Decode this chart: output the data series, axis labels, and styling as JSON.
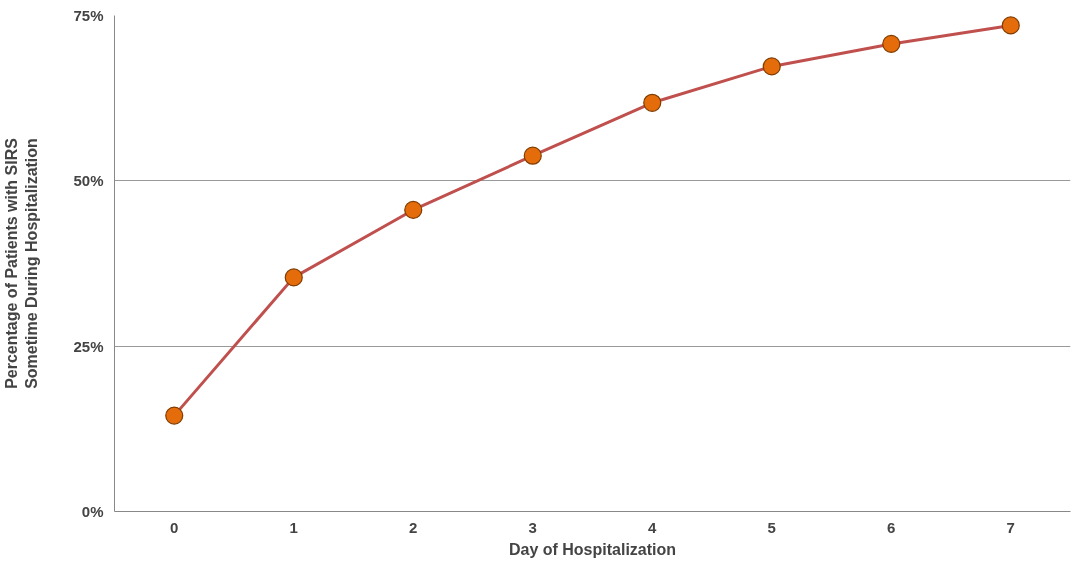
{
  "chart_data": {
    "type": "line",
    "xlabel": "Day of Hospitalization",
    "ylabel": "Percentage of Patients with SIRS\nSometime During Hospitalization",
    "categories": [
      "0",
      "1",
      "2",
      "3",
      "4",
      "5",
      "6",
      "7"
    ],
    "series": [
      {
        "color": "#c0504d",
        "values": [
          14.5,
          35.4,
          45.6,
          53.8,
          61.8,
          67.3,
          70.7,
          73.5
        ]
      }
    ],
    "marker": "circle",
    "ylim": [
      0,
      75
    ],
    "yticks": [
      {
        "value": 0,
        "label": "0%"
      },
      {
        "value": 25,
        "label": "25%"
      },
      {
        "value": 50,
        "label": "50%"
      },
      {
        "value": 75,
        "label": "75%"
      }
    ],
    "grid": "y"
  }
}
